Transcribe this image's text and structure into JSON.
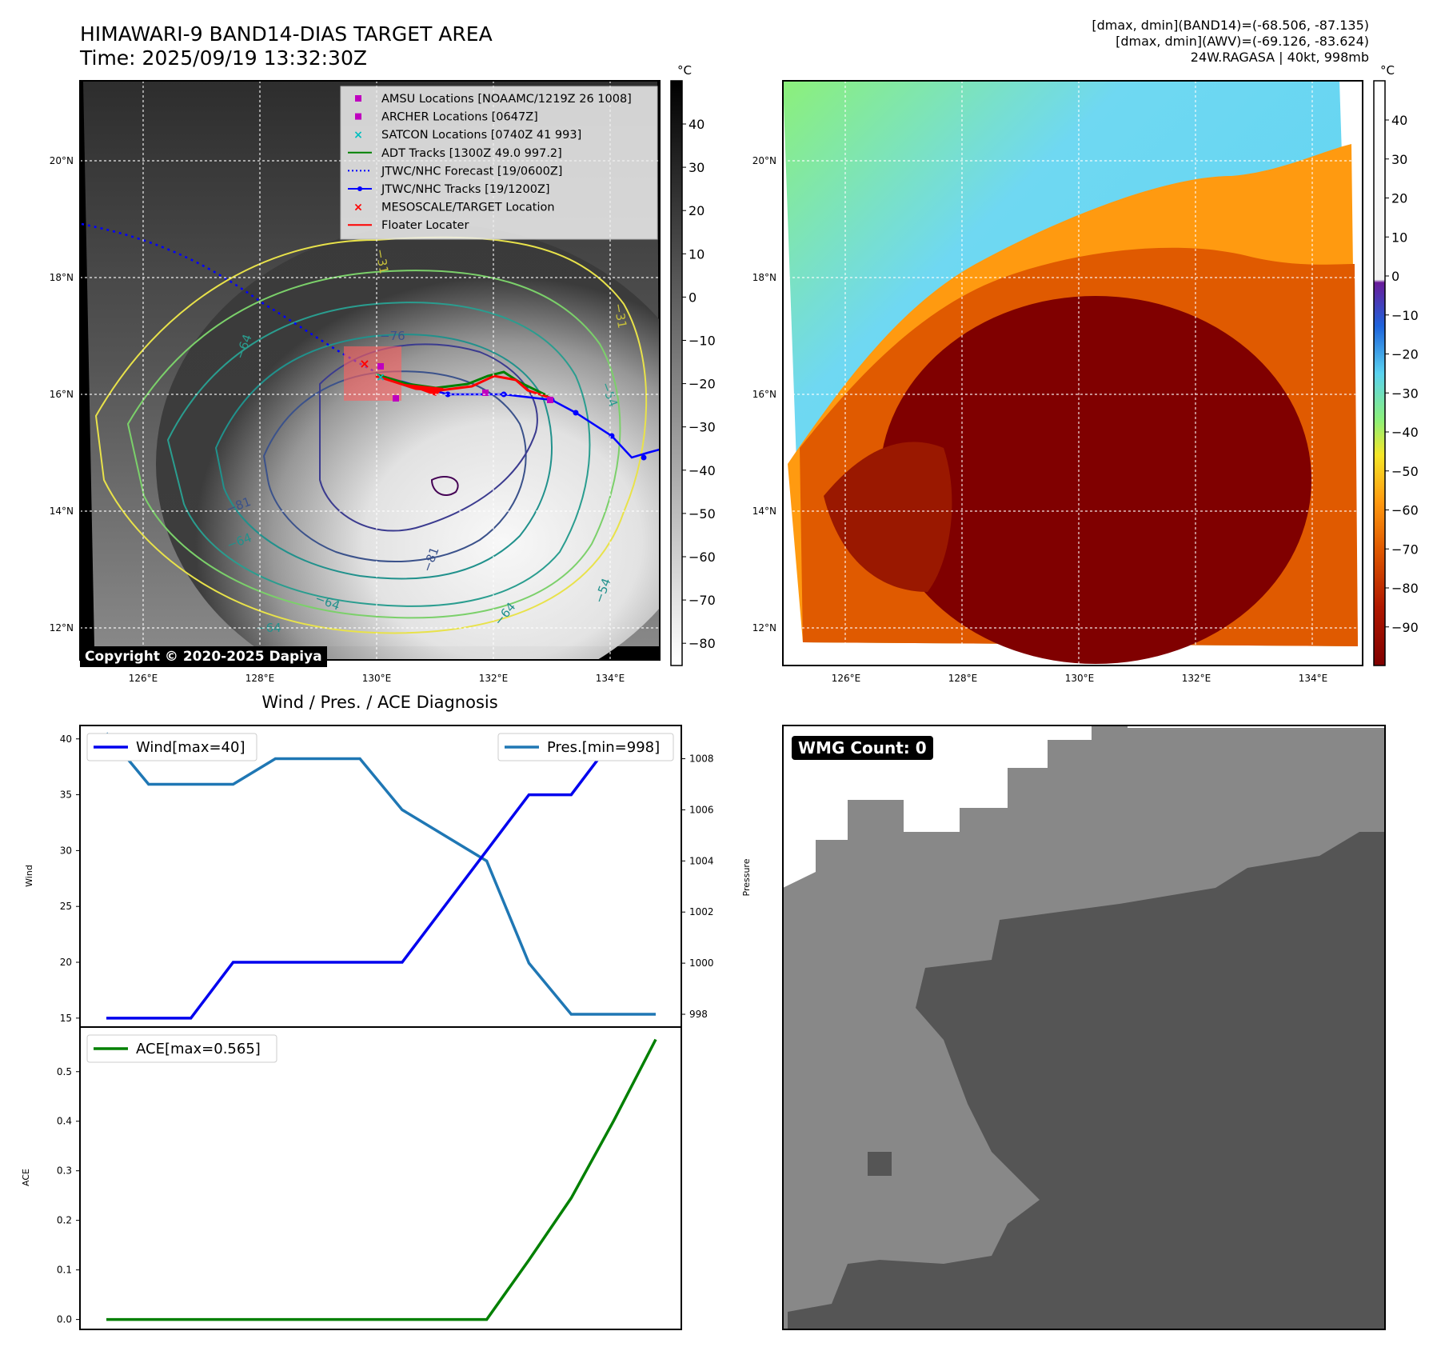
{
  "header": {
    "title": "HIMAWARI-9 BAND14-DIAS TARGET AREA",
    "time": "Time: 2025/09/19 13:32:30Z",
    "dmax_band14": "[dmax, dmin](BAND14)=(-68.506, -87.135)",
    "dmax_awv": "[dmax, dmin](AWV)=(-69.126, -83.624)",
    "storm": "24W.RAGASA | 40kt, 998mb"
  },
  "copyright": "Copyright © 2020-2025 Dapiya",
  "wmg_label": "WMG Count: 0",
  "map": {
    "lon_ticks": [
      "126°E",
      "128°E",
      "130°E",
      "132°E",
      "134°E"
    ],
    "lat_ticks": [
      "20°N",
      "18°N",
      "16°N",
      "14°N",
      "12°N"
    ],
    "unit": "°C",
    "gray_colorbar_ticks": [
      "40",
      "30",
      "20",
      "10",
      "0",
      "−10",
      "−20",
      "−30",
      "−40",
      "−50",
      "−60",
      "−70",
      "−80"
    ],
    "color_colorbar_ticks": [
      "40",
      "30",
      "20",
      "10",
      "0",
      "−10",
      "−20",
      "−30",
      "−40",
      "−50",
      "−60",
      "−70",
      "−80",
      "−90"
    ],
    "contour_labels": [
      "−76",
      "−64",
      "−54",
      "−81",
      "−64",
      "−64",
      "−81",
      "−64",
      "−54",
      "−64",
      "−31",
      "−31"
    ],
    "legend": [
      {
        "label": "AMSU Locations [NOAAMC/1219Z 26 1008]",
        "color": "#bf00bf",
        "marker": "square"
      },
      {
        "label": "ARCHER Locations [0647Z]",
        "color": "#bf00bf",
        "marker": "square"
      },
      {
        "label": "SATCON Locations [0740Z 41 993]",
        "color": "#00bfbf",
        "marker": "x"
      },
      {
        "label": "ADT Tracks [1300Z 49.0 997.2]",
        "color": "#008000",
        "marker": "line"
      },
      {
        "label": "JTWC/NHC Forecast [19/0600Z]",
        "color": "#0000ff",
        "marker": "dotted"
      },
      {
        "label": "JTWC/NHC Tracks [19/1200Z]",
        "color": "#0000ff",
        "marker": "line-dot"
      },
      {
        "label": "MESOSCALE/TARGET Location",
        "color": "#ff0000",
        "marker": "x"
      },
      {
        "label": "Floater Locater",
        "color": "#ff0000",
        "marker": "line"
      }
    ]
  },
  "chart_data": [
    {
      "type": "line",
      "title": "Wind / Pres. / ACE Diagnosis",
      "x": [
        0,
        1,
        2,
        3,
        4,
        5,
        6,
        7,
        8,
        9,
        10,
        11,
        12,
        13
      ],
      "series": [
        {
          "name": "Wind[max=40]",
          "axis": "left",
          "color": "#0000ee",
          "values": [
            15,
            15,
            15,
            20,
            20,
            20,
            20,
            20,
            25,
            30,
            35,
            35,
            40,
            40
          ]
        },
        {
          "name": "Pres.[min=998]",
          "axis": "right",
          "color": "#1f77b4",
          "values": [
            1009,
            1007,
            1007,
            1007,
            1008,
            1008,
            1008,
            1006,
            1005,
            1004,
            1000,
            998,
            998,
            998
          ]
        }
      ],
      "ylabel": "Wind",
      "y2label": "Pressure",
      "ylim": [
        14.2,
        41.2
      ],
      "y2lim": [
        997.5,
        1009.3
      ],
      "yticks": [
        15,
        20,
        25,
        30,
        35,
        40
      ],
      "y2ticks": [
        998,
        1000,
        1002,
        1004,
        1006,
        1008
      ]
    },
    {
      "type": "line",
      "x": [
        0,
        1,
        2,
        3,
        4,
        5,
        6,
        7,
        8,
        9,
        10,
        11,
        12,
        13
      ],
      "series": [
        {
          "name": "ACE[max=0.565]",
          "color": "#008000",
          "values": [
            0,
            0,
            0,
            0,
            0,
            0,
            0,
            0,
            0,
            0,
            0.12,
            0.245,
            0.4,
            0.565
          ]
        }
      ],
      "ylabel": "ACE",
      "ylim": [
        -0.02,
        0.59
      ],
      "yticks": [
        0.0,
        0.1,
        0.2,
        0.3,
        0.4,
        0.5
      ]
    }
  ]
}
